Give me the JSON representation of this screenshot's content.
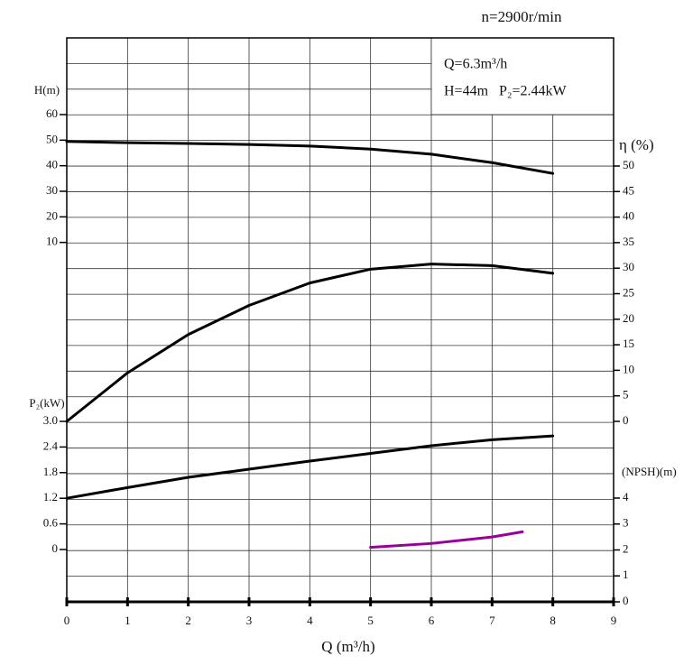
{
  "chart_data": {
    "type": "line",
    "title": "n=2900r/min",
    "annotations": [
      "Q=6.3m³/h",
      "H=44m   P₂=2.44kW"
    ],
    "x_label": "Q (m³/h)",
    "xlim": [
      0,
      9
    ],
    "xticks": [
      0,
      1,
      2,
      3,
      4,
      5,
      6,
      7,
      8,
      9
    ],
    "y_label": "H(m)",
    "ylim": [
      0,
      60
    ],
    "yticks": [
      10,
      20,
      30,
      40,
      50,
      60
    ],
    "y2_label": "η (%)",
    "y2lim": [
      0,
      50
    ],
    "y2ticks": [
      0,
      5,
      10,
      15,
      20,
      25,
      30,
      35,
      40,
      45,
      50
    ],
    "y3_label": "P₂(kW)",
    "y3lim": [
      0,
      3
    ],
    "y3ticks": [
      0,
      0.6,
      1.2,
      1.8,
      2.4,
      {
        "value": 3,
        "label": "3.0"
      }
    ],
    "y4_label": "(NPSH)(m)",
    "y4lim": [
      0,
      4
    ],
    "y4ticks": [
      0,
      1,
      2,
      3,
      4
    ],
    "grid": true,
    "series": [
      {
        "name": "H",
        "axis": "y",
        "color": "#000000",
        "x": [
          0,
          1,
          2,
          3,
          4,
          5,
          6,
          7,
          8
        ],
        "values": [
          49.5,
          49,
          48.7,
          48.3,
          47.7,
          46.5,
          44.5,
          41.2,
          37
        ]
      },
      {
        "name": "η",
        "axis": "y2",
        "color": "#000000",
        "x": [
          0,
          1,
          2,
          3,
          4,
          5,
          6,
          7,
          8
        ],
        "values": [
          0,
          9.5,
          17,
          22.7,
          27.1,
          29.8,
          30.8,
          30.5,
          29
        ]
      },
      {
        "name": "P₂",
        "axis": "y3",
        "color": "#000000",
        "x": [
          0,
          1,
          2,
          3,
          4,
          5,
          6,
          7,
          8
        ],
        "values": [
          1.2,
          1.45,
          1.69,
          1.88,
          2.07,
          2.25,
          2.43,
          2.57,
          2.66
        ]
      },
      {
        "name": "NPSH",
        "axis": "y4",
        "color": "#990099",
        "x": [
          5,
          6,
          7,
          7.5
        ],
        "values": [
          2.1,
          2.25,
          2.5,
          2.7
        ]
      }
    ]
  }
}
